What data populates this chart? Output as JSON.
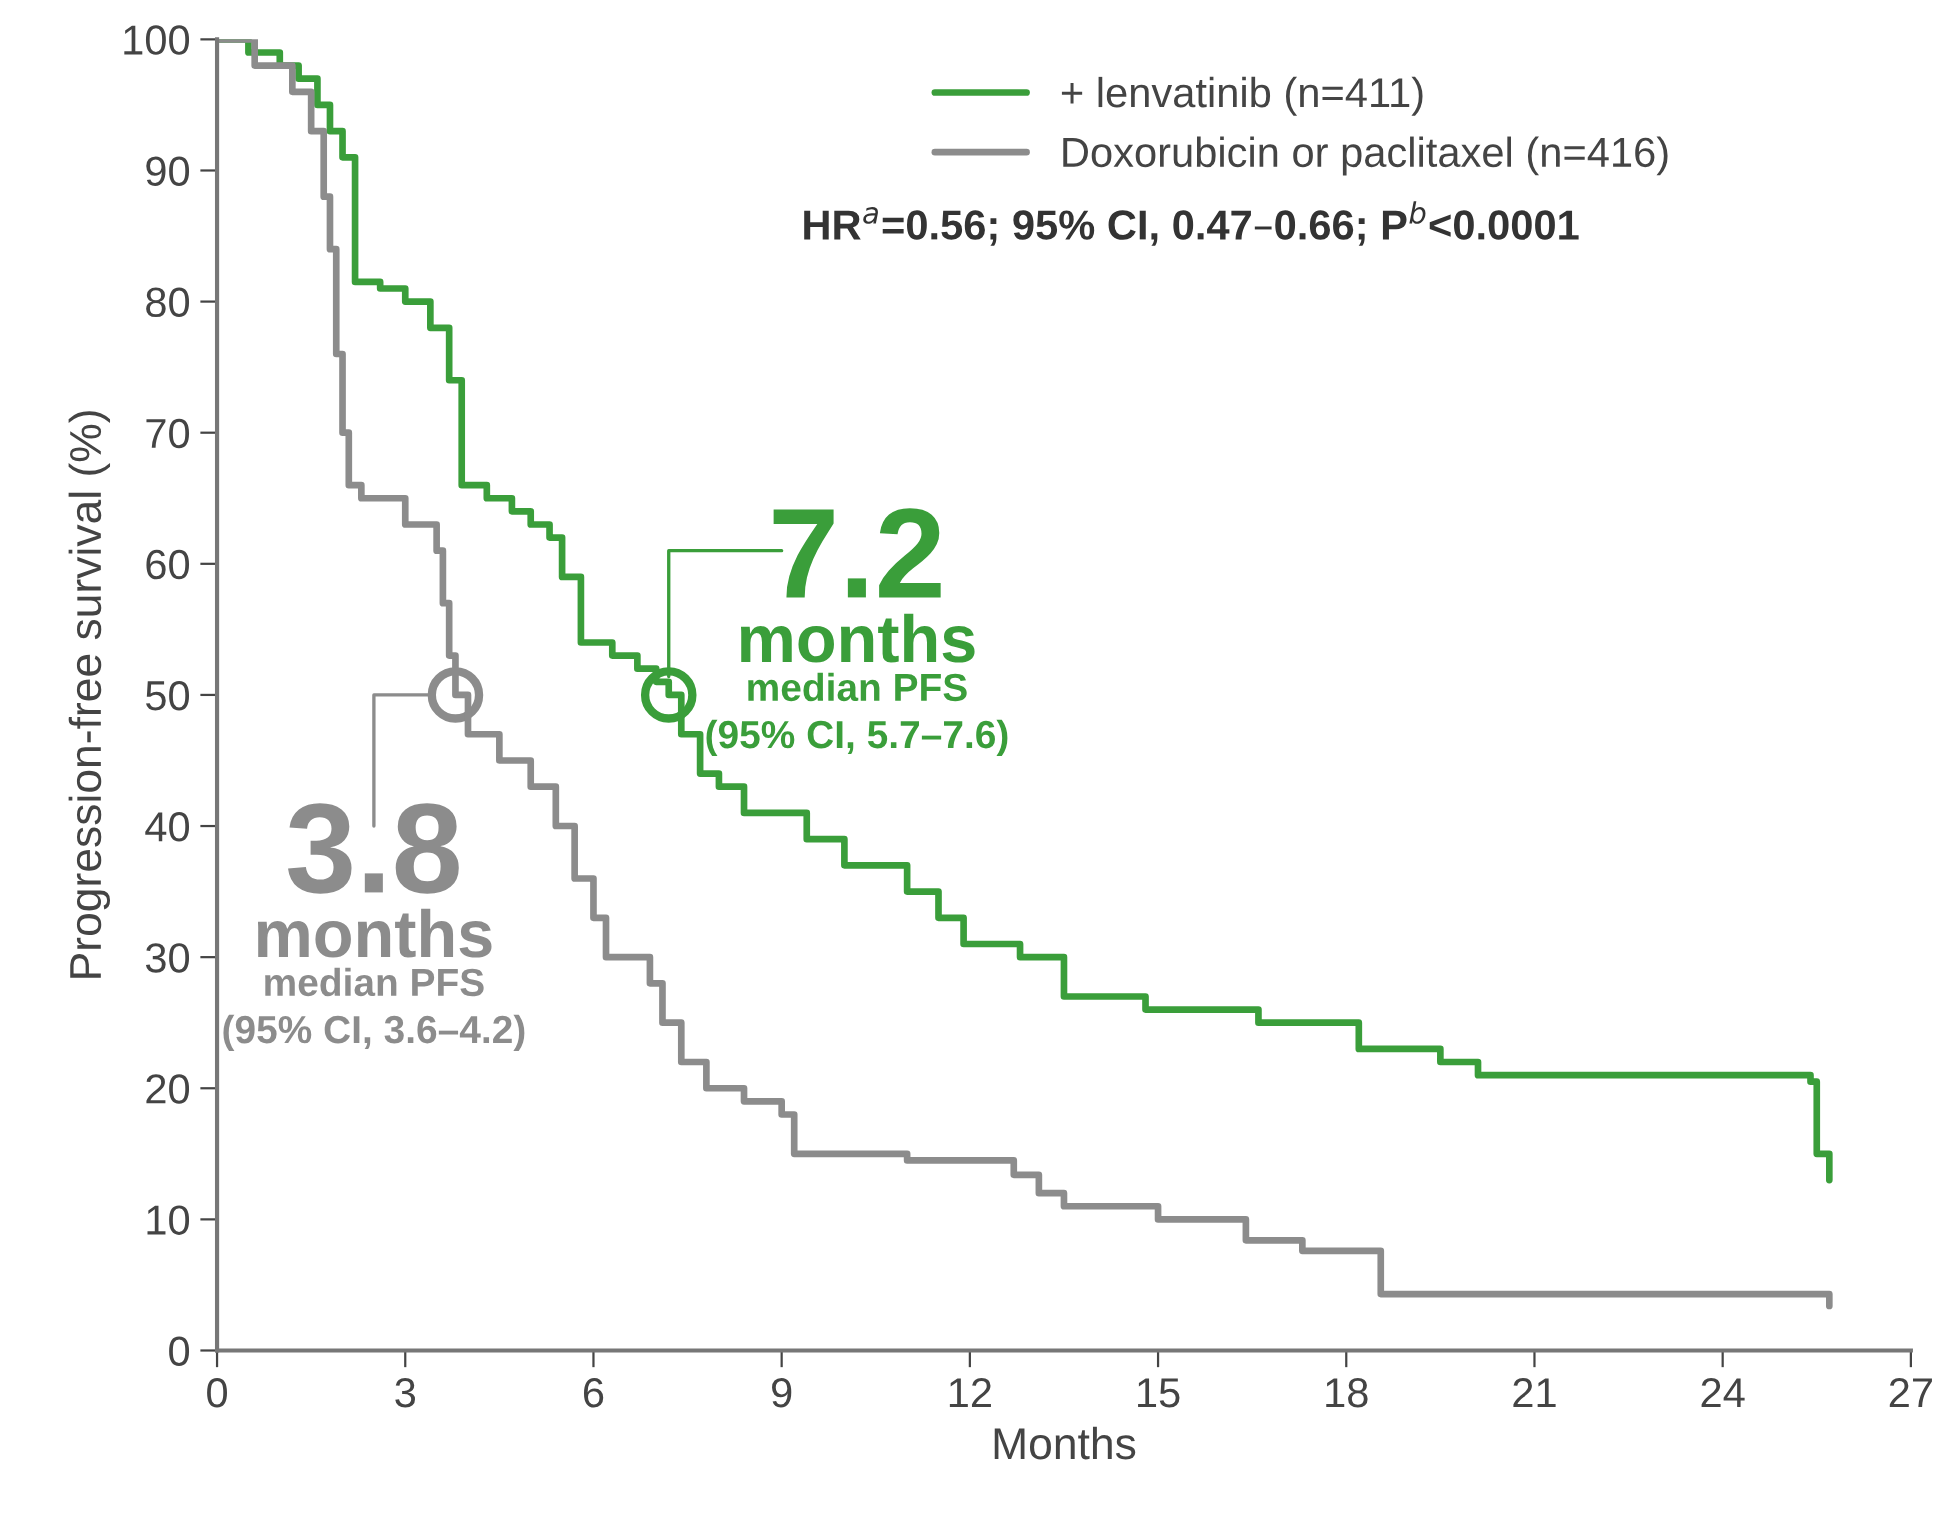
{
  "chart_data": {
    "type": "step",
    "xlabel": "Months",
    "ylabel": "Progression-free survival (%)",
    "xlim": [
      0,
      27
    ],
    "xticks": [
      0,
      3,
      6,
      9,
      12,
      15,
      18,
      21,
      24,
      27
    ],
    "ylim": [
      0,
      100
    ],
    "yticks": [
      0,
      10,
      20,
      30,
      40,
      50,
      60,
      70,
      80,
      90,
      100
    ],
    "grid": false,
    "legend": "top right",
    "marker": "none",
    "line_style": "solid",
    "series": [
      {
        "name": "+ lenvatinib (n=411)",
        "color": "#3a9e3a",
        "x": [
          0,
          0.5,
          1.0,
          1.3,
          1.6,
          1.8,
          2.0,
          2.2,
          2.6,
          3.0,
          3.4,
          3.7,
          3.9,
          4.3,
          4.7,
          5.0,
          5.3,
          5.5,
          5.8,
          6.3,
          6.7,
          7.0,
          7.2,
          7.4,
          7.7,
          8.0,
          8.4,
          9.4,
          10.0,
          11.0,
          11.5,
          11.9,
          12.8,
          13.5,
          14.8,
          16.6,
          18.2,
          19.5,
          20.1,
          25.4,
          25.5,
          25.7
        ],
        "values": [
          100,
          99,
          98,
          97,
          95,
          93,
          91,
          81.5,
          81,
          80,
          78,
          74,
          66,
          65,
          64,
          63,
          62,
          59,
          54,
          53,
          52,
          51,
          50,
          47,
          44,
          43,
          41,
          39,
          37,
          35,
          33,
          31,
          30,
          27,
          26,
          25,
          23,
          22,
          21,
          20.5,
          15,
          13
        ]
      },
      {
        "name": "Doxorubicin or paclitaxel (n=416)",
        "color": "#8c8c8c",
        "x": [
          0,
          0.6,
          1.2,
          1.5,
          1.7,
          1.8,
          1.9,
          2.0,
          2.1,
          2.3,
          3.0,
          3.5,
          3.6,
          3.7,
          3.8,
          4.0,
          4.5,
          5.0,
          5.4,
          5.7,
          6.0,
          6.2,
          6.9,
          7.1,
          7.4,
          7.8,
          8.4,
          9.0,
          9.2,
          10.5,
          11.0,
          12.7,
          13.1,
          13.5,
          15.0,
          16.4,
          17.3,
          18.55,
          25.7
        ],
        "values": [
          100,
          98,
          96,
          93,
          88,
          84,
          76,
          70,
          66,
          65,
          63,
          61,
          57,
          53,
          50,
          47,
          45,
          43,
          40,
          36,
          33,
          30,
          28,
          25,
          22,
          20,
          19,
          18,
          15,
          15,
          14.5,
          13.4,
          12,
          11,
          10,
          8.4,
          7.6,
          4.3,
          3.4
        ]
      }
    ],
    "annotations": [
      "HR$^{a}$=0.56; 95% CI, 0.47–0.66; P$^{b}$<0.0001",
      {
        "text": "7.2\nmonths\nmedian PFS\n(95% CI, 5.7–7.6)",
        "x": 7.2,
        "y": 50
      },
      {
        "text": "3.8\nmonths\nmedian PFS\n(95% CI, 3.6–4.2)",
        "x": 3.8,
        "y": 50
      }
    ]
  }
}
